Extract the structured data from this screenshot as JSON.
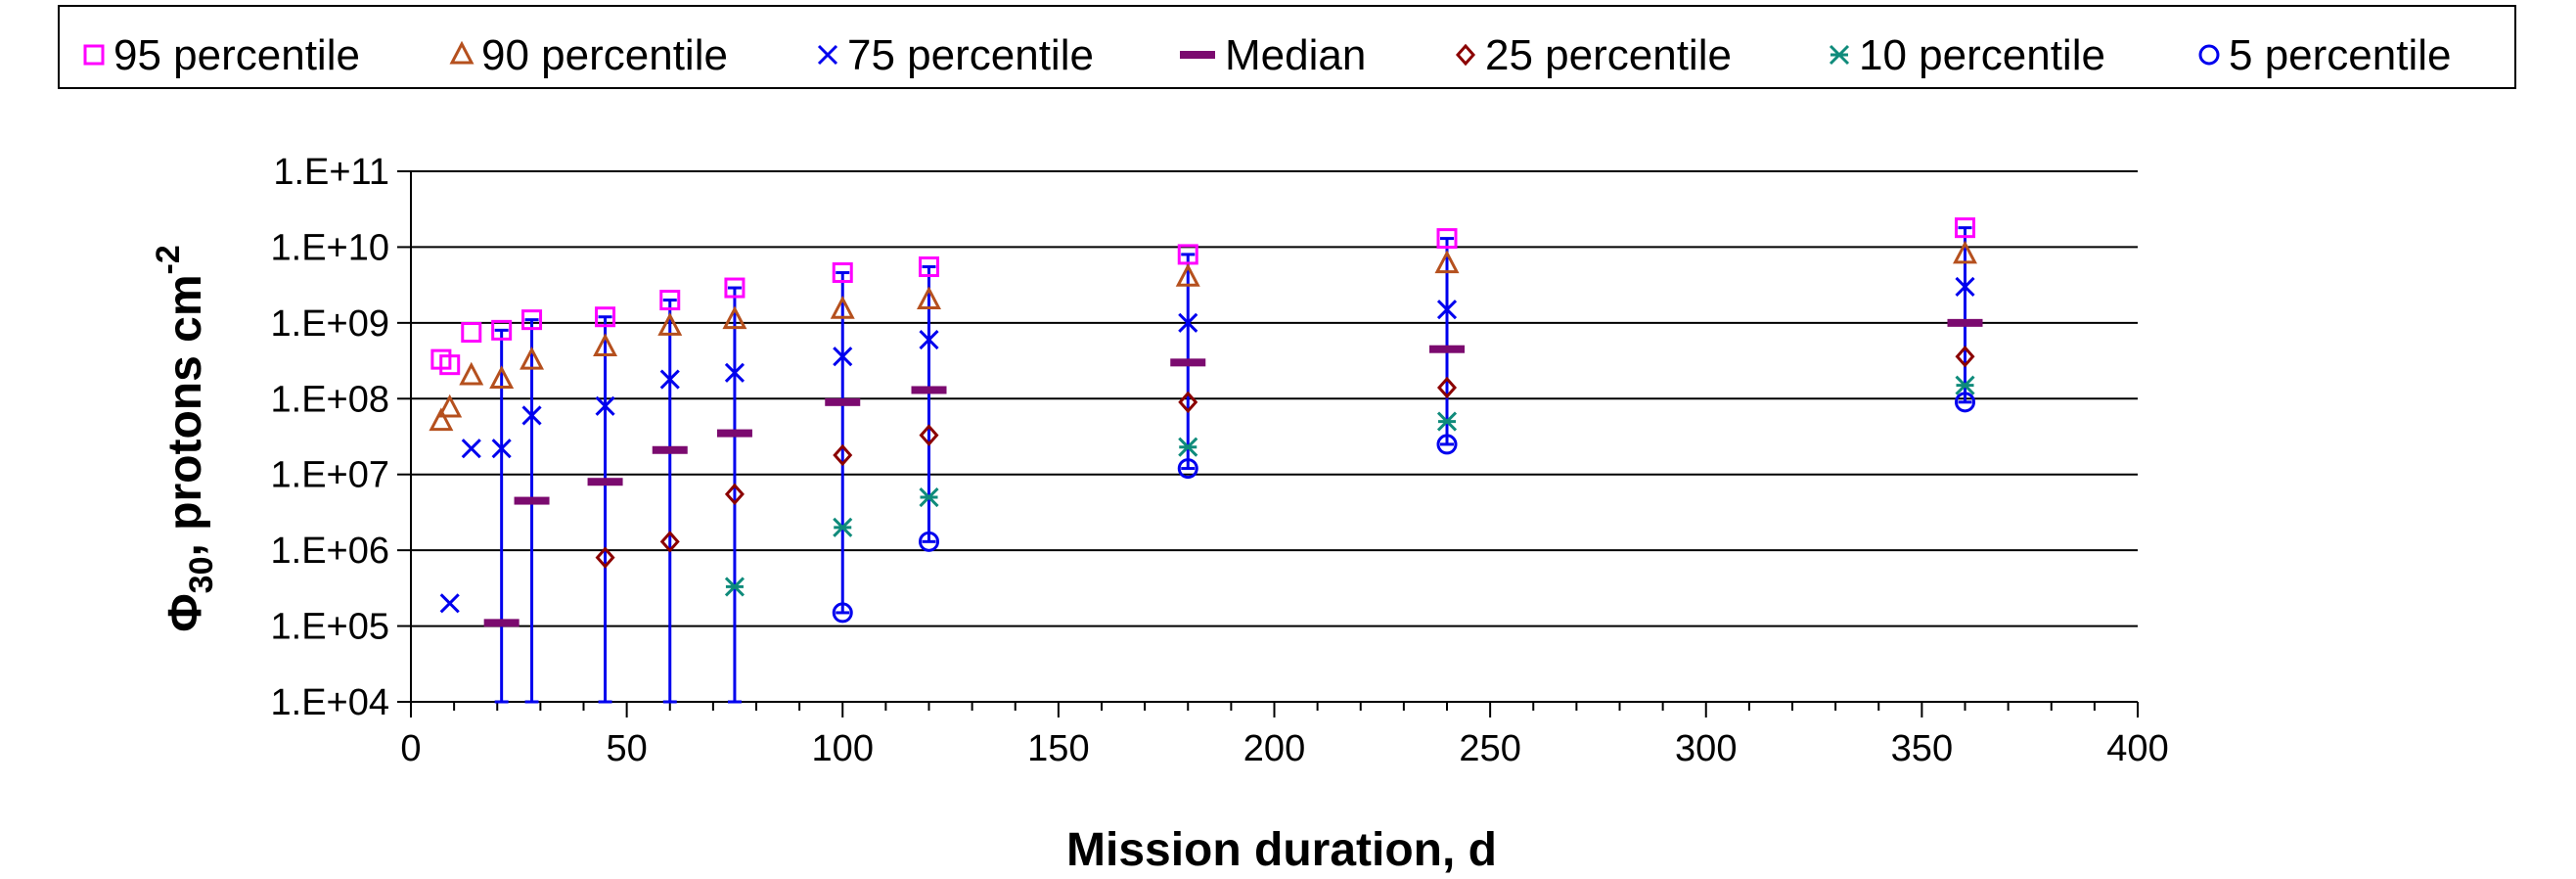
{
  "chart_data": {
    "type": "scatter",
    "xlabel": "Mission duration, d",
    "ylabel_main": "Φ",
    "ylabel_sub": "30",
    "ylabel_rest": ", protons cm",
    "ylabel_sup": "-2",
    "xlim": [
      0,
      400
    ],
    "ylim": [
      10000,
      100000000000
    ],
    "y_scale": "log",
    "grid": "horizontal",
    "legend_position": "top",
    "x_ticks": [
      "0",
      "50",
      "100",
      "150",
      "200",
      "250",
      "300",
      "350",
      "400"
    ],
    "y_ticks": [
      "1.E+04",
      "1.E+05",
      "1.E+06",
      "1.E+07",
      "1.E+08",
      "1.E+09",
      "1.E+10",
      "1.E+11"
    ],
    "series": [
      {
        "name": "95 percentile",
        "marker": "square",
        "color": "#ff00ff",
        "x": [
          7,
          9,
          14,
          21,
          28,
          45,
          60,
          75,
          100,
          120,
          180,
          240,
          360
        ],
        "y": [
          330000000,
          280000000,
          750000000,
          800000000,
          1100000000,
          1200000000,
          2000000000,
          2900000000,
          4600000000,
          5500000000,
          8000000000,
          13000000000,
          18000000000
        ]
      },
      {
        "name": "90 percentile",
        "marker": "triangle",
        "color": "#b5501e",
        "x": [
          7,
          9,
          14,
          21,
          28,
          45,
          60,
          75,
          100,
          120,
          180,
          240,
          360
        ],
        "y": [
          50000000,
          75000000,
          200000000,
          180000000,
          320000000,
          480000000,
          900000000,
          1100000000,
          1500000000,
          2000000000,
          4000000000,
          6000000000,
          8000000000
        ]
      },
      {
        "name": "75 percentile",
        "marker": "x",
        "color": "#0000ee",
        "x": [
          9,
          14,
          21,
          28,
          45,
          60,
          75,
          100,
          120,
          180,
          240,
          360
        ],
        "y": [
          200000,
          22000000,
          22000000,
          60000000,
          80000000,
          180000000,
          220000000,
          360000000,
          600000000,
          1000000000,
          1500000000,
          3000000000
        ]
      },
      {
        "name": "Median",
        "marker": "dash",
        "color": "#7b0a6f",
        "x": [
          21,
          28,
          45,
          60,
          75,
          100,
          120,
          180,
          240,
          360
        ],
        "y": [
          110000,
          4500000,
          8000000,
          21000000,
          35000000,
          90000000,
          130000000,
          300000000,
          450000000,
          1000000000
        ]
      },
      {
        "name": "25 percentile",
        "marker": "diamond",
        "color": "#8b0000",
        "x": [
          45,
          60,
          75,
          100,
          120,
          180,
          240,
          360
        ],
        "y": [
          800000,
          1300000,
          5500000,
          18000000,
          33000000,
          90000000,
          140000000,
          360000000
        ]
      },
      {
        "name": "10 percentile",
        "marker": "asterisk",
        "color": "#0f8b7b",
        "x": [
          75,
          100,
          120,
          180,
          240,
          360
        ],
        "y": [
          330000,
          2000000,
          5000000,
          23000000,
          50000000,
          150000000
        ]
      },
      {
        "name": "5 percentile",
        "marker": "circle",
        "color": "#0000ee",
        "x": [
          100,
          120,
          180,
          240,
          360
        ],
        "y": [
          150000,
          1300000,
          12000000,
          25000000,
          90000000
        ]
      }
    ],
    "error_bars": [
      {
        "x": 21,
        "low": 10000,
        "high": 800000000
      },
      {
        "x": 28,
        "low": 10000,
        "high": 1100000000
      },
      {
        "x": 45,
        "low": 10000,
        "high": 1200000000
      },
      {
        "x": 60,
        "low": 10000,
        "high": 2000000000
      },
      {
        "x": 75,
        "low": 10000,
        "high": 2900000000
      },
      {
        "x": 100,
        "low": 150000,
        "high": 4600000000
      },
      {
        "x": 120,
        "low": 1300000,
        "high": 5500000000
      },
      {
        "x": 180,
        "low": 12000000,
        "high": 8000000000
      },
      {
        "x": 240,
        "low": 25000000,
        "high": 13000000000
      },
      {
        "x": 360,
        "low": 90000000,
        "high": 18000000000
      }
    ],
    "colors": {
      "error_bar": "#0000ee",
      "grid": "#000000"
    }
  }
}
